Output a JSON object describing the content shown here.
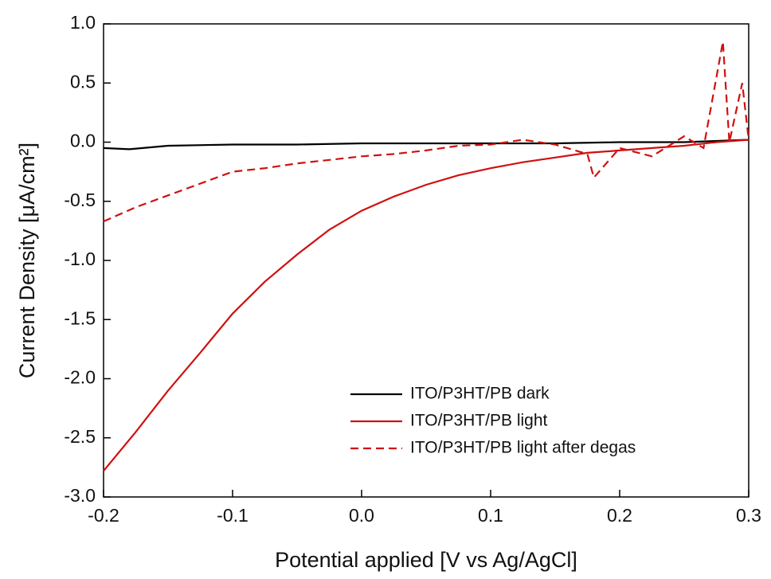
{
  "chart_data": {
    "type": "line",
    "x_label": "Potential applied [V vs Ag/AgCl]",
    "y_label": "Current Density [μA/cm²]",
    "xlim": [
      -0.2,
      0.3
    ],
    "ylim": [
      -3.0,
      1.0
    ],
    "xticks": [
      -0.2,
      -0.1,
      {
        "value": 0,
        "label": "0.0"
      },
      0.1,
      0.2,
      0.3
    ],
    "yticks": [
      {
        "value": -3,
        "label": "-3.0"
      },
      -2.5,
      {
        "value": -2,
        "label": "-2.0"
      },
      -1.5,
      {
        "value": -1,
        "label": "-1.0"
      },
      -0.5,
      {
        "value": 0,
        "label": "0.0"
      },
      0.5,
      {
        "value": 1,
        "label": "1.0"
      }
    ],
    "legend_position": "lower right",
    "series": [
      {
        "name": "ITO/P3HT/PB dark",
        "color": "#000000",
        "style": "solid",
        "x": [
          -0.2,
          -0.18,
          -0.15,
          -0.1,
          -0.05,
          0.0,
          0.05,
          0.1,
          0.15,
          0.2,
          0.25,
          0.3
        ],
        "values": [
          -0.05,
          -0.06,
          -0.03,
          -0.02,
          -0.02,
          -0.01,
          -0.01,
          -0.01,
          -0.01,
          0.0,
          0.0,
          0.02
        ]
      },
      {
        "name": "ITO/P3HT/PB light",
        "color": "#d01010",
        "style": "solid",
        "x": [
          -0.2,
          -0.175,
          -0.15,
          -0.125,
          -0.1,
          -0.075,
          -0.05,
          -0.025,
          0.0,
          0.025,
          0.05,
          0.075,
          0.1,
          0.125,
          0.15,
          0.175,
          0.2,
          0.225,
          0.25,
          0.275,
          0.3
        ],
        "values": [
          -2.78,
          -2.45,
          -2.1,
          -1.78,
          -1.45,
          -1.18,
          -0.95,
          -0.74,
          -0.58,
          -0.46,
          -0.36,
          -0.28,
          -0.22,
          -0.17,
          -0.13,
          -0.09,
          -0.07,
          -0.05,
          -0.03,
          0.0,
          0.02
        ]
      },
      {
        "name": "ITO/P3HT/PB light after degas",
        "color": "#d01010",
        "style": "dashed",
        "x": [
          -0.2,
          -0.175,
          -0.15,
          -0.125,
          -0.1,
          -0.075,
          -0.05,
          -0.025,
          0.0,
          0.025,
          0.05,
          0.075,
          0.1,
          0.125,
          0.15,
          0.175,
          0.18,
          0.2,
          0.225,
          0.25,
          0.265,
          0.28,
          0.285,
          0.295,
          0.3
        ],
        "values": [
          -0.67,
          -0.55,
          -0.45,
          -0.35,
          -0.25,
          -0.22,
          -0.18,
          -0.15,
          -0.12,
          -0.1,
          -0.07,
          -0.03,
          -0.02,
          0.02,
          -0.02,
          -0.1,
          -0.3,
          -0.05,
          -0.12,
          0.05,
          -0.05,
          0.85,
          0.0,
          0.5,
          0.02
        ]
      }
    ]
  }
}
